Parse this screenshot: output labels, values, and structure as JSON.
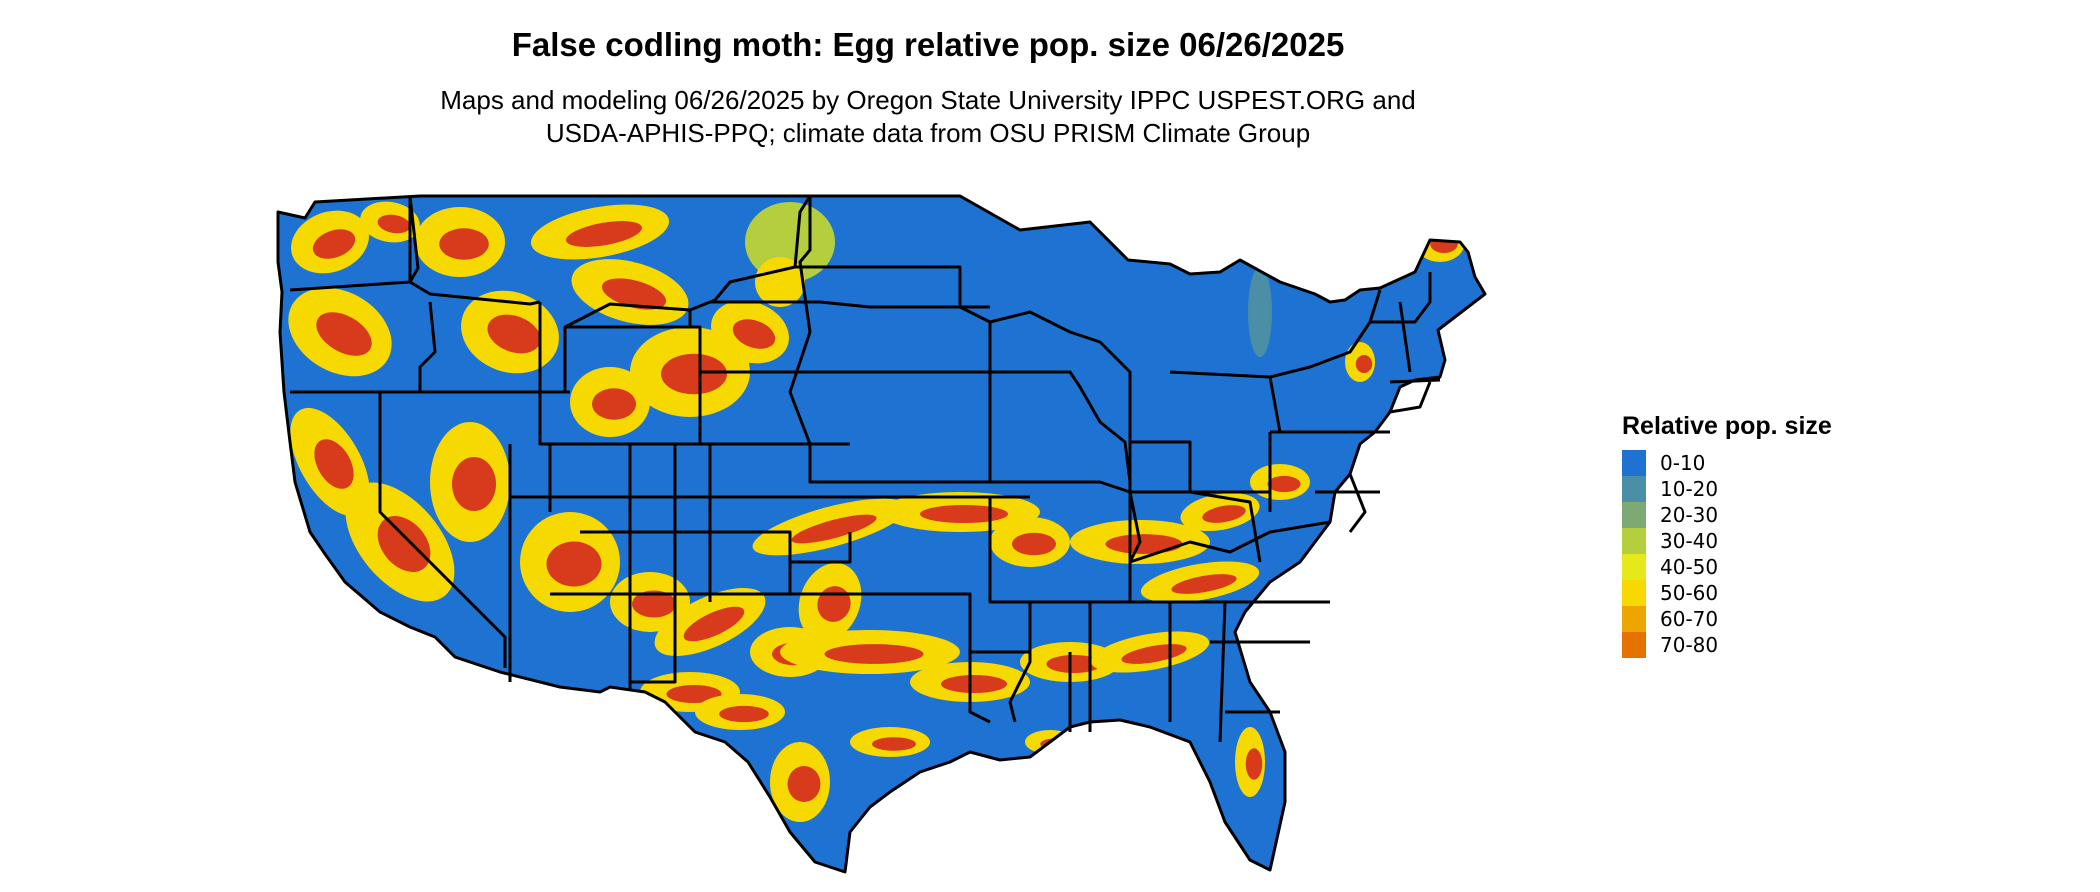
{
  "title": "False codling moth: Egg relative pop. size 06/26/2025",
  "subtitle_line1": "Maps and modeling 06/26/2025 by Oregon State University IPPC USPEST.ORG and",
  "subtitle_line2": "USDA-APHIS-PPQ; climate data from OSU PRISM Climate Group",
  "legend": {
    "title": "Relative pop. size",
    "items": [
      {
        "label": "0-10",
        "color": "#1E73D2"
      },
      {
        "label": "10-20",
        "color": "#4A8FA6"
      },
      {
        "label": "20-30",
        "color": "#7DAA72"
      },
      {
        "label": "30-40",
        "color": "#B5CE3E"
      },
      {
        "label": "40-50",
        "color": "#E6E81C"
      },
      {
        "label": "50-60",
        "color": "#F6D900"
      },
      {
        "label": "60-70",
        "color": "#EDA500"
      },
      {
        "label": "70-80",
        "color": "#E57200"
      }
    ]
  },
  "colors": {
    "base": "#1E73D2",
    "border": "#000000",
    "hot": "#D83A1C"
  }
}
